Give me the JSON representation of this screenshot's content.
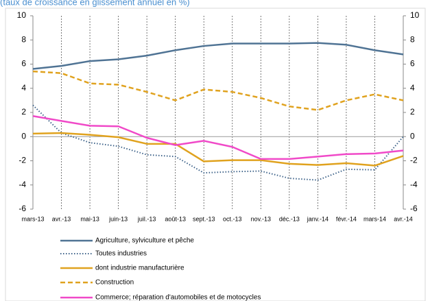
{
  "chart_data": {
    "type": "line",
    "title": "(taux de croissance en glissement annuel en %)",
    "categories": [
      "mars-13",
      "avr.-13",
      "mai-13",
      "juin-13",
      "juil.-13",
      "août-13",
      "sept.-13",
      "oct.-13",
      "nov.-13",
      "déc.-13",
      "janv.-14",
      "févr.-14",
      "mars-14",
      "avr.-14"
    ],
    "series": [
      {
        "name": "Agriculture, sylviculture et pêche",
        "color": "#4f7394",
        "style": "solid",
        "values": [
          5.6,
          5.85,
          6.25,
          6.4,
          6.7,
          7.15,
          7.5,
          7.7,
          7.7,
          7.7,
          7.75,
          7.6,
          7.15,
          6.8
        ]
      },
      {
        "name": "Toutes industries",
        "color": "#3d6289",
        "style": "dotted",
        "values": [
          2.6,
          0.3,
          -0.5,
          -0.8,
          -1.5,
          -1.65,
          -3.0,
          -2.9,
          -2.85,
          -3.45,
          -3.6,
          -2.7,
          -2.75,
          0.0
        ]
      },
      {
        "name": "dont industrie manufacturière",
        "color": "#e0a21e",
        "style": "solid",
        "values": [
          0.25,
          0.3,
          0.15,
          -0.05,
          -0.6,
          -0.6,
          -2.05,
          -1.95,
          -1.95,
          -2.25,
          -2.35,
          -2.2,
          -2.4,
          -1.6
        ]
      },
      {
        "name": "Construction",
        "color": "#e0a21e",
        "style": "dashed",
        "values": [
          5.4,
          5.25,
          4.4,
          4.3,
          3.7,
          3.0,
          3.9,
          3.7,
          3.2,
          2.5,
          2.2,
          3.0,
          3.5,
          3.0
        ]
      },
      {
        "name": "Commerce; réparation d'automobiles et de motocycles",
        "color": "#f049c8",
        "style": "solid",
        "values": [
          1.7,
          1.3,
          0.9,
          0.85,
          -0.1,
          -0.7,
          -0.35,
          -0.85,
          -1.85,
          -1.85,
          -1.65,
          -1.45,
          -1.4,
          -1.15
        ]
      }
    ],
    "ylim": [
      -6,
      10
    ],
    "yticks": [
      -6,
      -4,
      -2,
      0,
      2,
      4,
      6,
      8,
      10
    ],
    "y2lim": [
      -6,
      10
    ],
    "y2ticks": [
      -6,
      -4,
      -2,
      0,
      2,
      4,
      6,
      8,
      10
    ]
  }
}
